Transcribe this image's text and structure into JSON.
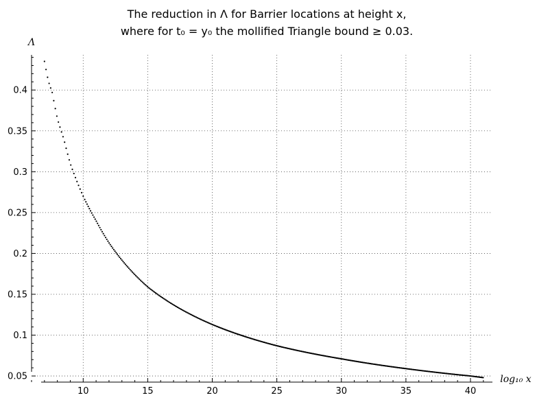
{
  "chart_data": {
    "type": "scatter",
    "title_line1": "The reduction in Λ for Barrier locations at height x,",
    "title_line2": "where for t₀ = y₀ the mollified Triangle bound ≥ 0.03.",
    "xlabel": "log₁₀ x",
    "ylabel": "Λ",
    "xlim": [
      6.0,
      41.7
    ],
    "ylim": [
      0.0425,
      0.443
    ],
    "x_ticks": [
      10,
      15,
      20,
      25,
      30,
      35,
      40
    ],
    "y_ticks": [
      0.05,
      0.1,
      0.15,
      0.2,
      0.25,
      0.3,
      0.35,
      0.4
    ],
    "y_tick_labels": [
      "0.05",
      "0.1",
      "0.15",
      "0.2",
      "0.25",
      "0.3",
      "0.35",
      "0.4"
    ],
    "x_tick_labels": [
      "10",
      "15",
      "20",
      "25",
      "30",
      "35",
      "40"
    ],
    "grid": true,
    "grid_style": "dotted",
    "marker_color": "#000000",
    "curve_model": "Lambda ~ 0.435 * (7 / log10 x)^k, k from power fit",
    "points_range": {
      "x_start": 7.0,
      "x_end": 41.0
    },
    "key_points": [
      {
        "x": 7.0,
        "y": 0.435
      },
      {
        "x": 7.3,
        "y": 0.411
      },
      {
        "x": 7.6,
        "y": 0.397
      },
      {
        "x": 8.0,
        "y": 0.365
      },
      {
        "x": 8.5,
        "y": 0.34
      },
      {
        "x": 9.0,
        "y": 0.31
      },
      {
        "x": 10.0,
        "y": 0.27
      },
      {
        "x": 11.0,
        "y": 0.24
      },
      {
        "x": 12.0,
        "y": 0.213
      },
      {
        "x": 15.0,
        "y": 0.159
      },
      {
        "x": 20.0,
        "y": 0.113
      },
      {
        "x": 25.0,
        "y": 0.087
      },
      {
        "x": 30.0,
        "y": 0.071
      },
      {
        "x": 35.0,
        "y": 0.059
      },
      {
        "x": 40.0,
        "y": 0.05
      },
      {
        "x": 41.0,
        "y": 0.048
      }
    ]
  }
}
